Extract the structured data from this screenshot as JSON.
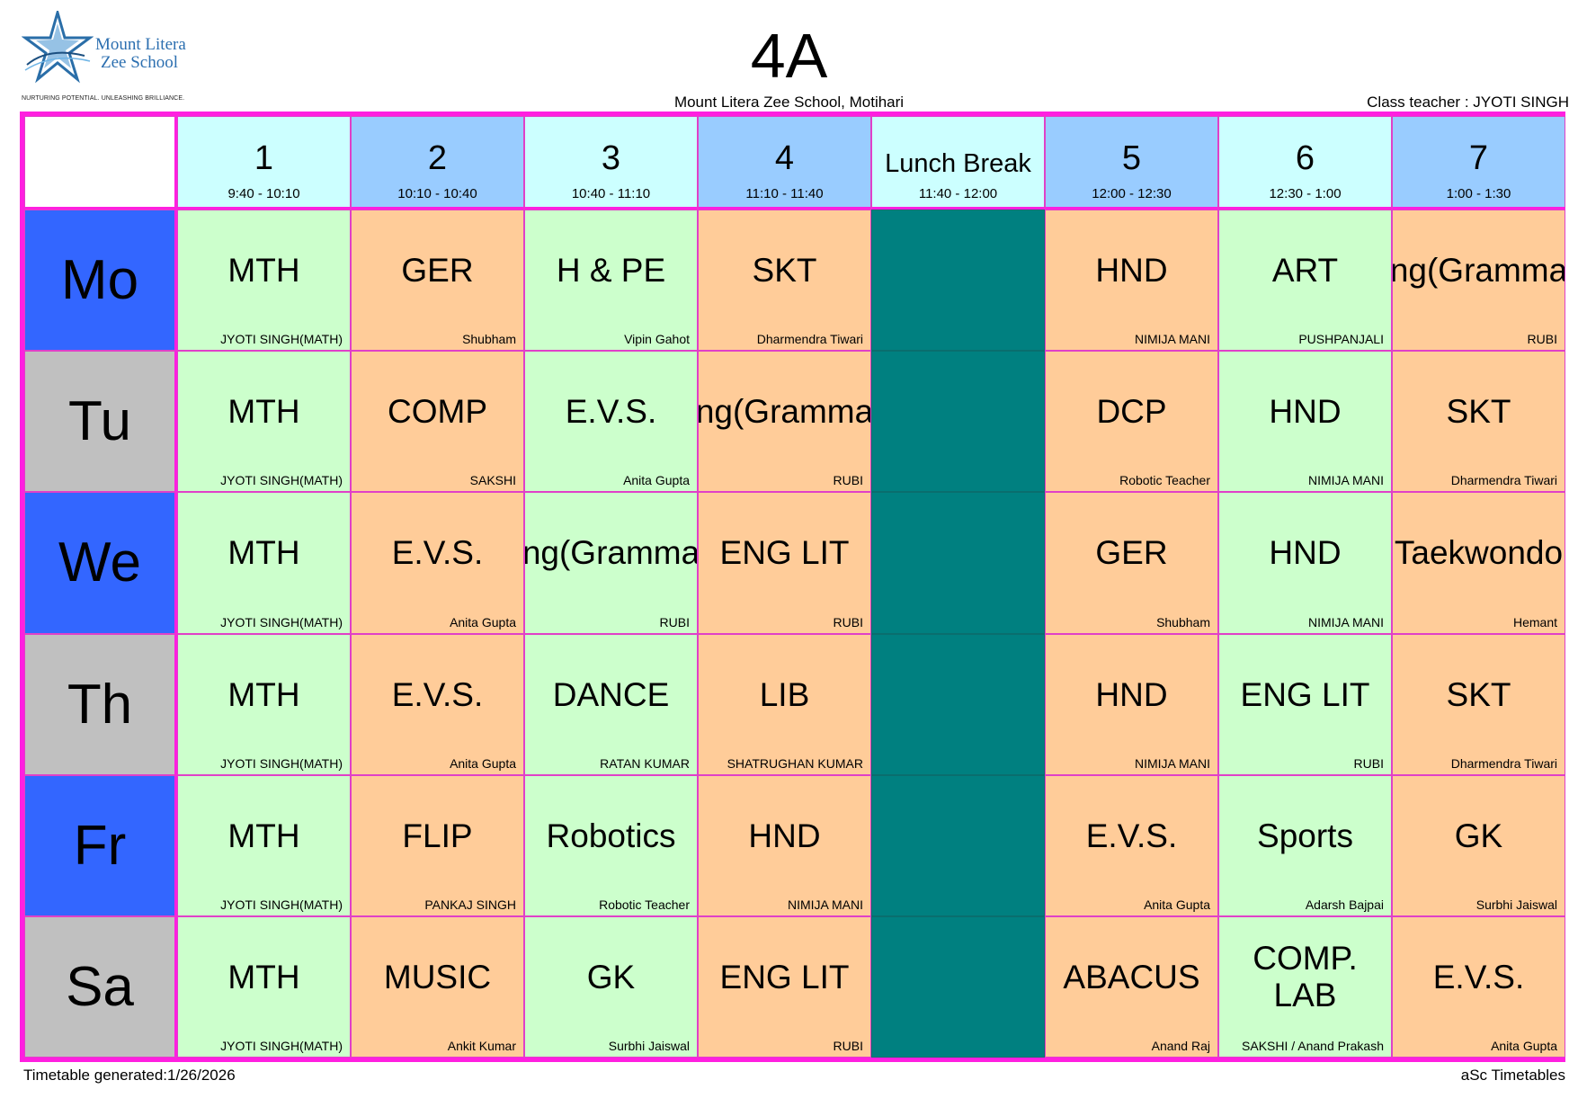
{
  "logo": {
    "name_line1": "Mount Litera",
    "name_line2": "Zee School",
    "tagline": "NURTURING POTENTIAL. UNLEASHING BRILLIANCE."
  },
  "title": "4A",
  "school": "Mount Litera Zee School, Motihari",
  "class_teacher": "Class teacher : JYOTI SINGH",
  "periods": [
    {
      "label": "1",
      "time": "9:40 - 10:10"
    },
    {
      "label": "2",
      "time": "10:10 - 10:40"
    },
    {
      "label": "3",
      "time": "10:40 - 11:10"
    },
    {
      "label": "4",
      "time": "11:10 - 11:40"
    },
    {
      "label": "Lunch Break",
      "time": "11:40 - 12:00"
    },
    {
      "label": "5",
      "time": "12:00 - 12:30"
    },
    {
      "label": "6",
      "time": "12:30 - 1:00"
    },
    {
      "label": "7",
      "time": "1:00 - 1:30"
    }
  ],
  "days": [
    {
      "name": "Mo",
      "lessons": [
        {
          "subject": "MTH",
          "teacher": "JYOTI SINGH(MATH)"
        },
        {
          "subject": "GER",
          "teacher": "Shubham"
        },
        {
          "subject": "H & PE",
          "teacher": "Vipin Gahot"
        },
        {
          "subject": "SKT",
          "teacher": "Dharmendra Tiwari"
        },
        {
          "subject": "HND",
          "teacher": "NIMIJA MANI"
        },
        {
          "subject": "ART",
          "teacher": "PUSHPANJALI"
        },
        {
          "subject": "Eng(Grammar)",
          "teacher": "RUBI"
        }
      ]
    },
    {
      "name": "Tu",
      "lessons": [
        {
          "subject": "MTH",
          "teacher": "JYOTI SINGH(MATH)"
        },
        {
          "subject": "COMP",
          "teacher": "SAKSHI"
        },
        {
          "subject": "E.V.S.",
          "teacher": "Anita Gupta"
        },
        {
          "subject": "Eng(Grammar)",
          "teacher": "RUBI"
        },
        {
          "subject": "DCP",
          "teacher": "Robotic Teacher"
        },
        {
          "subject": "HND",
          "teacher": "NIMIJA MANI"
        },
        {
          "subject": "SKT",
          "teacher": "Dharmendra Tiwari"
        }
      ]
    },
    {
      "name": "We",
      "lessons": [
        {
          "subject": "MTH",
          "teacher": "JYOTI SINGH(MATH)"
        },
        {
          "subject": "E.V.S.",
          "teacher": "Anita Gupta"
        },
        {
          "subject": "Eng(Grammar)",
          "teacher": "RUBI"
        },
        {
          "subject": "ENG LIT",
          "teacher": "RUBI"
        },
        {
          "subject": "GER",
          "teacher": "Shubham"
        },
        {
          "subject": "HND",
          "teacher": "NIMIJA MANI"
        },
        {
          "subject": "Taekwondo",
          "teacher": "Hemant"
        }
      ]
    },
    {
      "name": "Th",
      "lessons": [
        {
          "subject": "MTH",
          "teacher": "JYOTI SINGH(MATH)"
        },
        {
          "subject": "E.V.S.",
          "teacher": "Anita Gupta"
        },
        {
          "subject": "DANCE",
          "teacher": "RATAN KUMAR"
        },
        {
          "subject": "LIB",
          "teacher": "SHATRUGHAN KUMAR"
        },
        {
          "subject": "HND",
          "teacher": "NIMIJA MANI"
        },
        {
          "subject": "ENG LIT",
          "teacher": "RUBI"
        },
        {
          "subject": "SKT",
          "teacher": "Dharmendra Tiwari"
        }
      ]
    },
    {
      "name": "Fr",
      "lessons": [
        {
          "subject": "MTH",
          "teacher": "JYOTI SINGH(MATH)"
        },
        {
          "subject": "FLIP",
          "teacher": "PANKAJ SINGH"
        },
        {
          "subject": "Robotics",
          "teacher": "Robotic Teacher"
        },
        {
          "subject": "HND",
          "teacher": "NIMIJA MANI"
        },
        {
          "subject": "E.V.S.",
          "teacher": "Anita Gupta"
        },
        {
          "subject": "Sports",
          "teacher": "Adarsh Bajpai"
        },
        {
          "subject": "GK",
          "teacher": "Surbhi Jaiswal"
        }
      ]
    },
    {
      "name": "Sa",
      "lessons": [
        {
          "subject": "MTH",
          "teacher": "JYOTI SINGH(MATH)"
        },
        {
          "subject": "MUSIC",
          "teacher": "Ankit Kumar"
        },
        {
          "subject": "GK",
          "teacher": "Surbhi Jaiswal"
        },
        {
          "subject": "ENG LIT",
          "teacher": "RUBI"
        },
        {
          "subject": "ABACUS",
          "teacher": "Anand Raj"
        },
        {
          "subject": "COMP. LAB",
          "teacher": "SAKSHI / Anand Prakash"
        },
        {
          "subject": "E.V.S.",
          "teacher": "Anita Gupta"
        }
      ]
    }
  ],
  "footer_left": "Timetable generated:1/26/2026",
  "footer_right": "aSc Timetables",
  "colors": {
    "border": "#ff1fe0",
    "header_light": "#ccffff",
    "header_dark": "#99ccff",
    "day_blue": "#3366ff",
    "day_grey": "#c0c0c0",
    "lesson_green": "#ccffcc",
    "lesson_orange": "#ffcc99",
    "lunch": "#008080"
  }
}
